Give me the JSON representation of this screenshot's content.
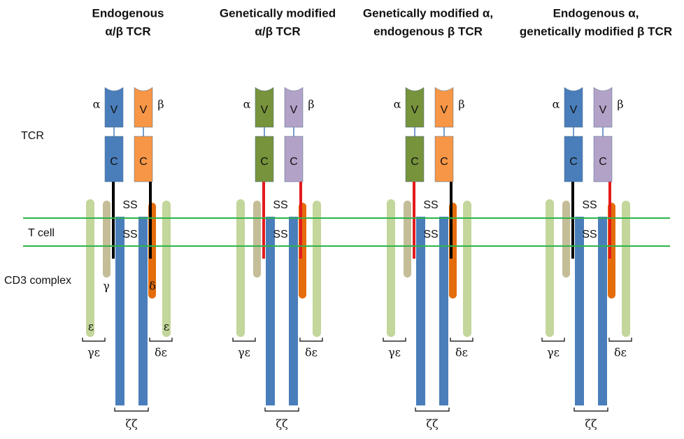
{
  "side_labels": {
    "tcr": "TCR",
    "t_cell": "T cell",
    "cd3": "CD3 complex"
  },
  "panels": [
    {
      "title": [
        "Endogenous",
        "α/β TCR"
      ],
      "alpha": "α",
      "beta": "β",
      "v": [
        "V",
        "V"
      ],
      "c": [
        "C",
        "C"
      ],
      "ss": [
        "SS",
        "SS"
      ],
      "gamma": "γ",
      "delta": "δ",
      "epsilon": [
        "ε",
        "ε"
      ],
      "gamma_epsilon": "γε",
      "delta_epsilon": "δε",
      "zeta_zeta": "ζζ",
      "alpha_color": "#4a7ebb",
      "beta_color": "#f79646",
      "alpha_link": "#000000",
      "beta_link": "#000000"
    },
    {
      "title": [
        "Genetically modified",
        "α/β TCR"
      ],
      "alpha": "α",
      "beta": "β",
      "v": [
        "V",
        "V"
      ],
      "c": [
        "C",
        "C"
      ],
      "ss": [
        "SS",
        "SS"
      ],
      "gamma_epsilon": "γε",
      "delta_epsilon": "δε",
      "zeta_zeta": "ζζ",
      "alpha_color": "#77933c",
      "beta_color": "#b3a2c7",
      "alpha_link": "#e31a1c",
      "beta_link": "#e31a1c"
    },
    {
      "title": [
        "Genetically modified α,",
        "endogenous β TCR"
      ],
      "alpha": "α",
      "beta": "β",
      "v": [
        "V",
        "V"
      ],
      "c": [
        "C",
        "C"
      ],
      "ss": [
        "SS",
        "SS"
      ],
      "gamma_epsilon": "γε",
      "delta_epsilon": "δε",
      "zeta_zeta": "ζζ",
      "alpha_color": "#77933c",
      "beta_color": "#f79646",
      "alpha_link": "#e31a1c",
      "beta_link": "#000000"
    },
    {
      "title": [
        "Endogenous α,",
        "genetically modified β TCR"
      ],
      "alpha": "α",
      "beta": "β",
      "v": [
        "V",
        "V"
      ],
      "c": [
        "C",
        "C"
      ],
      "ss": [
        "SS",
        "SS"
      ],
      "gamma_epsilon": "γε",
      "delta_epsilon": "δε",
      "zeta_zeta": "ζζ",
      "alpha_color": "#4a7ebb",
      "beta_color": "#b3a2c7",
      "alpha_link": "#000000",
      "beta_link": "#e31a1c"
    }
  ]
}
